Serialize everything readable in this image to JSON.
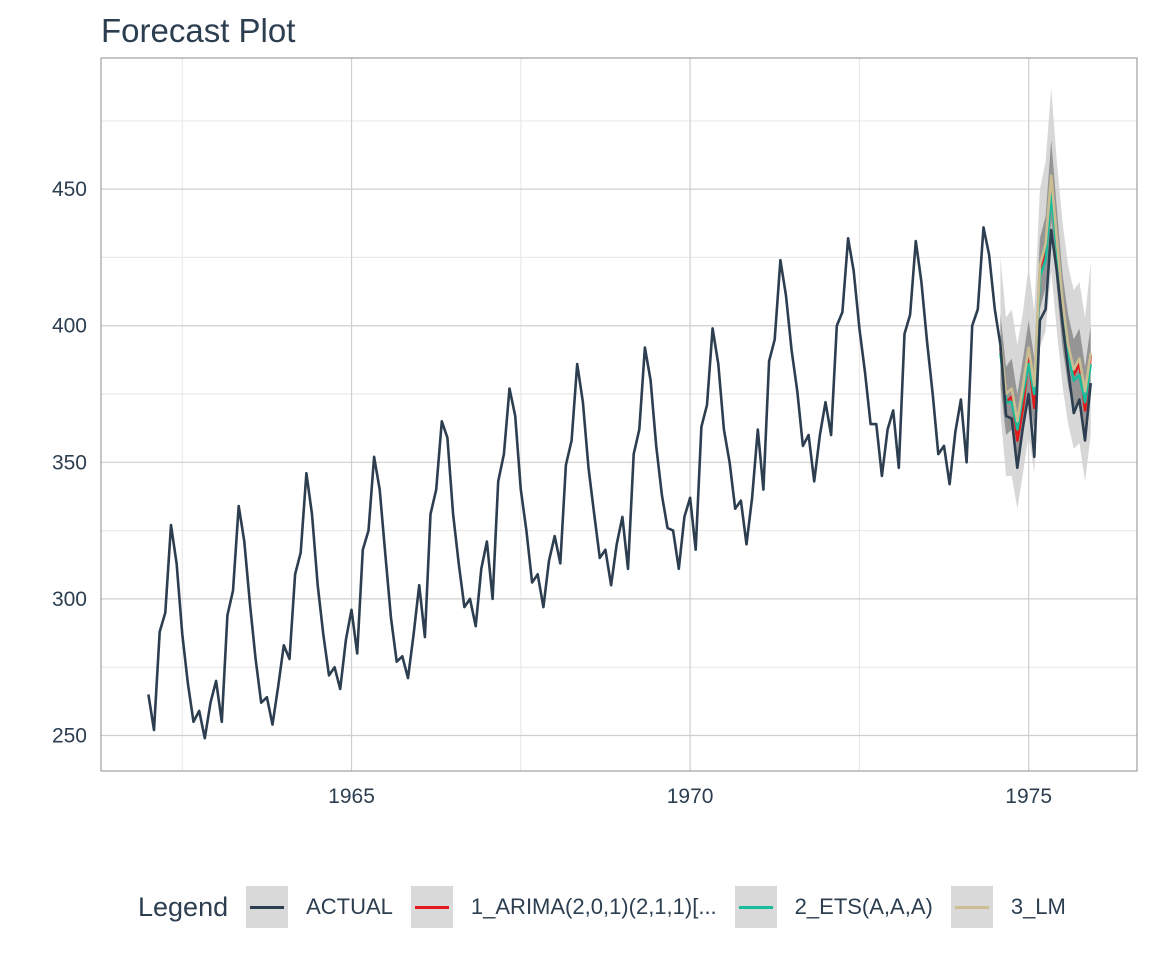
{
  "chart_data": {
    "type": "line",
    "title": "Forecast Plot",
    "xlim": [
      1961.3,
      1976.6
    ],
    "ylim": [
      237,
      498
    ],
    "x_ticks": [
      1965,
      1970,
      1975
    ],
    "y_ticks": [
      250,
      300,
      350,
      400,
      450
    ],
    "grid": true,
    "legend_position": "bottom",
    "legend_title": "Legend",
    "colors": {
      "actual": "#2c3e50",
      "arima": "#e31a1c",
      "ets": "#18bc9c",
      "lm": "#ccbe93",
      "band_inner": "#8a8a8a",
      "band_outer": "#d3d3d3"
    },
    "series": [
      {
        "name": "ACTUAL",
        "x_start": 1962.0,
        "step": 0.08333,
        "values": [
          265,
          252,
          288,
          295,
          327,
          313,
          287,
          269,
          255,
          259,
          249,
          262,
          270,
          255,
          294,
          303,
          334,
          321,
          298,
          278,
          262,
          264,
          254,
          268,
          283,
          278,
          309,
          317,
          346,
          331,
          305,
          287,
          272,
          275,
          267,
          285,
          296,
          280,
          318,
          325,
          352,
          340,
          316,
          293,
          277,
          279,
          271,
          287,
          305,
          286,
          331,
          340,
          365,
          359,
          331,
          313,
          297,
          300,
          290,
          311,
          321,
          300,
          343,
          353,
          377,
          367,
          340,
          325,
          306,
          309,
          297,
          314,
          323,
          313,
          349,
          358,
          386,
          372,
          348,
          331,
          315,
          318,
          305,
          320,
          330,
          311,
          353,
          362,
          392,
          380,
          356,
          338,
          326,
          325,
          311,
          330,
          337,
          318,
          363,
          371,
          399,
          386,
          362,
          350,
          333,
          336,
          320,
          337,
          362,
          340,
          387,
          395,
          424,
          411,
          391,
          376,
          356,
          360,
          343,
          360,
          372,
          360,
          400,
          405,
          432,
          420,
          399,
          383,
          364,
          364,
          345,
          362,
          369,
          348,
          397,
          404,
          431,
          416,
          394,
          375,
          353,
          356,
          342,
          361,
          373,
          350,
          400,
          406,
          436,
          426,
          406,
          393,
          367,
          366,
          348,
          363,
          375,
          352,
          402,
          406,
          435,
          420,
          401,
          384,
          368,
          373,
          358,
          379
        ]
      },
      {
        "name": "1_ARIMA(2,0,1)(2,1,1)[...",
        "x_start": 1974.583,
        "step": 0.08333,
        "values": [
          392,
          372,
          374,
          358,
          370,
          388,
          370,
          420,
          428,
          452,
          428,
          405,
          391,
          382,
          386,
          369,
          389
        ]
      },
      {
        "name": "2_ETS(A,A,A)",
        "x_start": 1974.583,
        "step": 0.08333,
        "values": [
          390,
          372,
          372,
          362,
          375,
          386,
          375,
          418,
          424,
          448,
          428,
          404,
          390,
          380,
          382,
          372,
          386
        ]
      },
      {
        "name": "3_LM",
        "x_start": 1974.583,
        "step": 0.08333,
        "values": [
          394,
          375,
          377,
          365,
          378,
          392,
          378,
          422,
          430,
          455,
          432,
          409,
          393,
          384,
          388,
          376,
          390
        ]
      }
    ],
    "forecast_band": {
      "x_start": 1974.583,
      "step": 0.08333,
      "inner_upper": [
        404,
        385,
        388,
        375,
        388,
        402,
        388,
        432,
        440,
        468,
        443,
        419,
        404,
        395,
        399,
        385,
        400
      ],
      "inner_lower": [
        378,
        360,
        362,
        348,
        362,
        375,
        362,
        406,
        414,
        438,
        414,
        392,
        378,
        369,
        372,
        358,
        375
      ],
      "outer_upper": [
        425,
        403,
        406,
        393,
        405,
        422,
        405,
        450,
        460,
        487,
        460,
        438,
        422,
        413,
        416,
        403,
        423
      ],
      "outer_lower": [
        368,
        345,
        345,
        333,
        346,
        360,
        346,
        392,
        398,
        420,
        398,
        378,
        364,
        355,
        357,
        343,
        360
      ]
    }
  }
}
